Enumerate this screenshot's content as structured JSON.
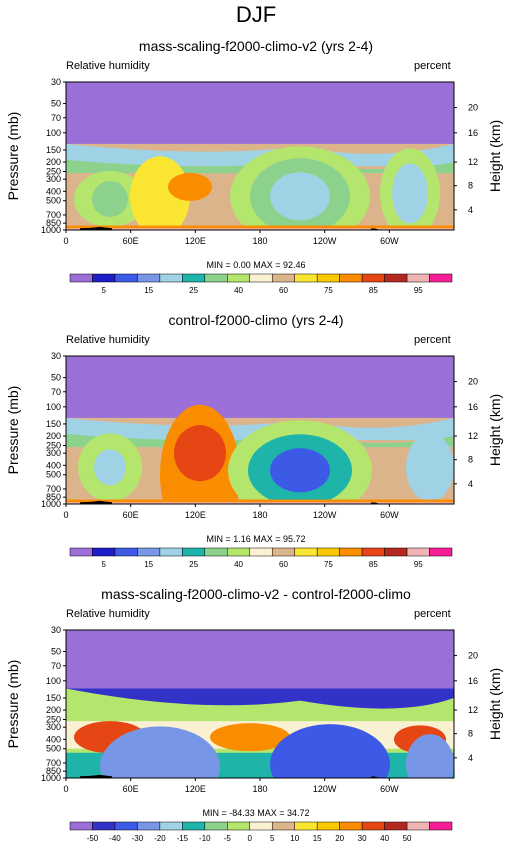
{
  "title": "DJF",
  "colors": {
    "humidity": [
      "#9a70d8",
      "#1e1ec8",
      "#3c5ae6",
      "#7896e6",
      "#a0d2e6",
      "#1eb4aa",
      "#8cd28c",
      "#b4e66e",
      "#faf0d2",
      "#dcb48c",
      "#fae632",
      "#fac800",
      "#fa8c00",
      "#e64614",
      "#b42820",
      "#f0b4b4",
      "#fa1e96"
    ],
    "diff": [
      "#9a70d8",
      "#3232c8",
      "#3c5ae6",
      "#7896e6",
      "#a0d2e6",
      "#1eb4aa",
      "#8cd28c",
      "#b4e66e",
      "#faf0d2",
      "#dcb48c",
      "#fae632",
      "#fac800",
      "#fa8c00",
      "#e64614",
      "#b42820",
      "#f0b4b4",
      "#fa1e96"
    ]
  },
  "chart_data": [
    {
      "type": "heatmap",
      "title": "mass-scaling-f2000-climo-v2 (yrs 2-4)",
      "left_label": "Relative humidity",
      "right_label": "percent",
      "ylabel": "Pressure (mb)",
      "ylabel_right": "Height (km)",
      "x_ticks": [
        "0",
        "60E",
        "120E",
        "180",
        "120W",
        "60W"
      ],
      "y_ticks": [
        "30",
        "50",
        "70",
        "100",
        "150",
        "200",
        "250",
        "300",
        "400",
        "500",
        "700",
        "850",
        "1000"
      ],
      "y_ticks_right": [
        "20",
        "16",
        "12",
        "8",
        "4"
      ],
      "stats": "MIN =  0.00   MAX = 92.46",
      "colorbar_labels": [
        "5",
        "15",
        "25",
        "40",
        "60",
        "75",
        "85",
        "95"
      ],
      "min": 0.0,
      "max": 92.46
    },
    {
      "type": "heatmap",
      "title": "control-f2000-climo (yrs 2-4)",
      "left_label": "Relative humidity",
      "right_label": "percent",
      "ylabel": "Pressure (mb)",
      "ylabel_right": "Height (km)",
      "x_ticks": [
        "0",
        "60E",
        "120E",
        "180",
        "120W",
        "60W"
      ],
      "y_ticks": [
        "30",
        "50",
        "70",
        "100",
        "150",
        "200",
        "250",
        "300",
        "400",
        "500",
        "700",
        "850",
        "1000"
      ],
      "y_ticks_right": [
        "20",
        "16",
        "12",
        "8",
        "4"
      ],
      "stats": "MIN =  1.16   MAX = 95.72",
      "colorbar_labels": [
        "5",
        "15",
        "25",
        "40",
        "60",
        "75",
        "85",
        "95"
      ],
      "min": 1.16,
      "max": 95.72
    },
    {
      "type": "heatmap",
      "title": "mass-scaling-f2000-climo-v2 - control-f2000-climo",
      "left_label": "Relative humidity",
      "right_label": "percent",
      "ylabel": "Pressure (mb)",
      "ylabel_right": "Height (km)",
      "x_ticks": [
        "0",
        "60E",
        "120E",
        "180",
        "120W",
        "60W"
      ],
      "y_ticks": [
        "30",
        "50",
        "70",
        "100",
        "150",
        "200",
        "250",
        "300",
        "400",
        "500",
        "700",
        "850",
        "1000"
      ],
      "y_ticks_right": [
        "20",
        "16",
        "12",
        "8",
        "4"
      ],
      "stats": "MIN = -84.33   MAX = 34.72",
      "colorbar_labels": [
        "-50",
        "-40",
        "-30",
        "-20",
        "-15",
        "-10",
        "-5",
        "0",
        "5",
        "10",
        "15",
        "20",
        "30",
        "40",
        "50"
      ],
      "min": -84.33,
      "max": 34.72
    }
  ]
}
